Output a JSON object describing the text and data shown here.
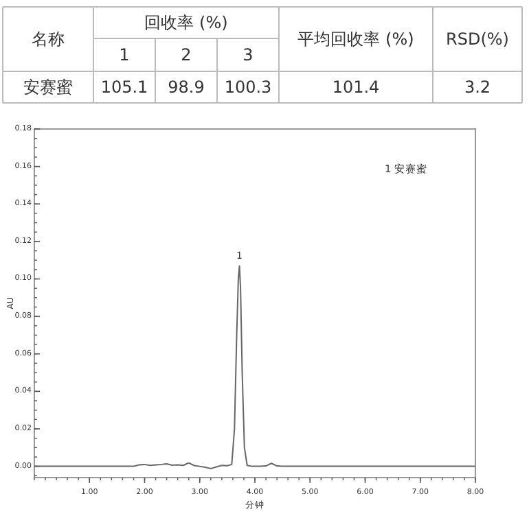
{
  "chart_data": [
    {
      "type": "other",
      "annotations": [
        "名称",
        "回收率 (%)",
        "1",
        "2",
        "3",
        "平均回收率 (%)",
        "RSD(%)",
        "安赛蜜",
        "105.1",
        "98.9",
        "100.3",
        "101.4",
        "3.2"
      ]
    },
    {
      "type": "line",
      "xlabel": "分钟",
      "ylabel": "AU",
      "xlim": [
        0,
        8
      ],
      "ylim": [
        -0.006,
        0.18
      ],
      "xticks": [
        {
          "value": 1,
          "label": "1.00"
        },
        {
          "value": 2,
          "label": "2.00"
        },
        {
          "value": 3,
          "label": "3.00"
        },
        {
          "value": 4,
          "label": "4.00"
        },
        {
          "value": 5,
          "label": "5.00"
        },
        {
          "value": 6,
          "label": "6.00"
        },
        {
          "value": 7,
          "label": "7.00"
        },
        {
          "value": 8,
          "label": "8.00"
        }
      ],
      "yticks": [
        {
          "value": 0,
          "label": "0.00"
        },
        {
          "value": 0.02,
          "label": "0.02"
        },
        {
          "value": 0.04,
          "label": "0.04"
        },
        {
          "value": 0.06,
          "label": "0.06"
        },
        {
          "value": 0.08,
          "label": "0.08"
        },
        {
          "value": 0.1,
          "label": "0.10"
        },
        {
          "value": 0.12,
          "label": "0.12"
        },
        {
          "value": 0.14,
          "label": "0.14"
        },
        {
          "value": 0.16,
          "label": "0.16"
        },
        {
          "value": 0.18,
          "label": "0.18"
        }
      ],
      "grid": false,
      "marker": "none",
      "line_style": "solid",
      "series": [
        {
          "color": "#666666",
          "x": [
            0,
            1.0,
            1.8,
            1.9,
            2.0,
            2.1,
            2.2,
            2.3,
            2.4,
            2.5,
            2.6,
            2.7,
            2.8,
            2.9,
            3.0,
            3.1,
            3.2,
            3.3,
            3.4,
            3.5,
            3.58,
            3.63,
            3.67,
            3.7,
            3.72,
            3.74,
            3.77,
            3.81,
            3.86,
            3.95,
            4.1,
            4.2,
            4.3,
            4.4,
            4.5,
            5.0,
            6.0,
            7.0,
            8.0
          ],
          "values": [
            0,
            0,
            0,
            0.0008,
            0.001,
            0.0005,
            0.0008,
            0.001,
            0.0013,
            0.0006,
            0.0008,
            0.0005,
            0.0018,
            0.0004,
            0,
            -0.0005,
            -0.0012,
            -0.0003,
            0.0005,
            0.0003,
            0.001,
            0.02,
            0.07,
            0.1,
            0.107,
            0.095,
            0.05,
            0.01,
            0.0005,
            0,
            0,
            0.0002,
            0.0016,
            0.0002,
            0,
            0,
            0,
            0,
            0
          ]
        }
      ],
      "annotations": [
        {
          "text": "1",
          "x": 3.72,
          "y": 0.107
        },
        "1  安赛蜜"
      ]
    }
  ]
}
